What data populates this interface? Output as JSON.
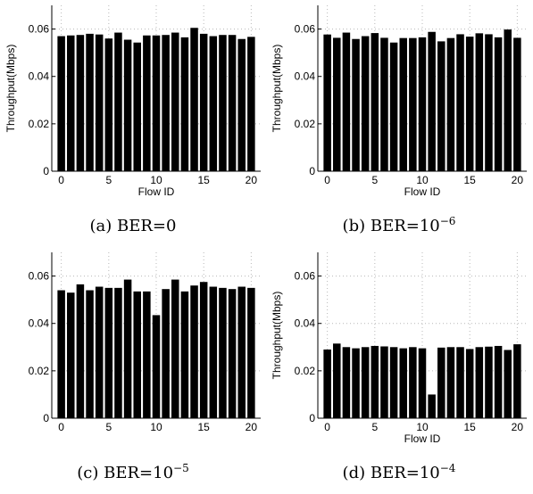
{
  "chart_data": [
    {
      "type": "bar",
      "caption": {
        "prefix": "(a) BER=0",
        "exponent": ""
      },
      "xlabel": "Flow ID",
      "ylabel": "Throughput(Mbps)",
      "xlim": [
        -1,
        21
      ],
      "ylim": [
        0,
        0.07
      ],
      "xticks": [
        0,
        5,
        10,
        15,
        20
      ],
      "yticks": [
        0,
        0.02,
        0.04,
        0.06
      ],
      "ytick_labels": [
        "0",
        "0.02",
        "0.04",
        "0.06"
      ],
      "grid": true,
      "categories": [
        0,
        1,
        2,
        3,
        4,
        5,
        6,
        7,
        8,
        9,
        10,
        11,
        12,
        13,
        14,
        15,
        16,
        17,
        18,
        19,
        20
      ],
      "values": [
        0.057,
        0.0573,
        0.0575,
        0.058,
        0.0577,
        0.056,
        0.0585,
        0.0555,
        0.0543,
        0.0573,
        0.0573,
        0.0575,
        0.0585,
        0.0565,
        0.0605,
        0.058,
        0.057,
        0.0575,
        0.0575,
        0.0558,
        0.0567
      ]
    },
    {
      "type": "bar",
      "caption": {
        "prefix": "(b) BER=10",
        "exponent": "−6"
      },
      "xlabel": "Flow ID",
      "ylabel": "Throughput(Mbps)",
      "xlim": [
        -1,
        21
      ],
      "ylim": [
        0,
        0.07
      ],
      "xticks": [
        0,
        5,
        10,
        15,
        20
      ],
      "yticks": [
        0,
        0.02,
        0.04,
        0.06
      ],
      "ytick_labels": [
        "0",
        "0.02",
        "0.04",
        "0.06"
      ],
      "grid": true,
      "categories": [
        0,
        1,
        2,
        3,
        4,
        5,
        6,
        7,
        8,
        9,
        10,
        11,
        12,
        13,
        14,
        15,
        16,
        17,
        18,
        19,
        20
      ],
      "values": [
        0.0577,
        0.0563,
        0.0585,
        0.0558,
        0.057,
        0.0583,
        0.0563,
        0.0543,
        0.0562,
        0.0562,
        0.0565,
        0.0588,
        0.0548,
        0.0562,
        0.0578,
        0.0568,
        0.0582,
        0.0578,
        0.0565,
        0.0598,
        0.0563
      ]
    },
    {
      "type": "bar",
      "caption": {
        "prefix": "(c) BER=10",
        "exponent": "−5"
      },
      "xlabel": "",
      "ylabel": "",
      "xlim": [
        -1,
        21
      ],
      "ylim": [
        0,
        0.07
      ],
      "xticks": [
        0,
        5,
        10,
        15,
        20
      ],
      "yticks": [
        0,
        0.02,
        0.04,
        0.06
      ],
      "ytick_labels": [
        "0",
        "0.02",
        "0.04",
        "0.06"
      ],
      "grid": true,
      "categories": [
        0,
        1,
        2,
        3,
        4,
        5,
        6,
        7,
        8,
        9,
        10,
        11,
        12,
        13,
        14,
        15,
        16,
        17,
        18,
        19,
        20
      ],
      "values": [
        0.054,
        0.053,
        0.0565,
        0.054,
        0.0555,
        0.055,
        0.055,
        0.0585,
        0.0535,
        0.0535,
        0.0435,
        0.0545,
        0.0585,
        0.0535,
        0.056,
        0.0575,
        0.0555,
        0.055,
        0.0545,
        0.0555,
        0.055
      ]
    },
    {
      "type": "bar",
      "caption": {
        "prefix": "(d) BER=10",
        "exponent": "−4"
      },
      "xlabel": "Flow ID",
      "ylabel": "Throughput(Mbps)",
      "xlim": [
        -1,
        21
      ],
      "ylim": [
        0,
        0.07
      ],
      "xticks": [
        0,
        5,
        10,
        15,
        20
      ],
      "yticks": [
        0,
        0.02,
        0.04,
        0.06
      ],
      "ytick_labels": [
        "0",
        "0.02",
        "0.04",
        "0.06"
      ],
      "grid": true,
      "categories": [
        0,
        1,
        2,
        3,
        4,
        5,
        6,
        7,
        8,
        9,
        10,
        11,
        12,
        13,
        14,
        15,
        16,
        17,
        18,
        19,
        20
      ],
      "values": [
        0.029,
        0.0315,
        0.03,
        0.0295,
        0.03,
        0.0305,
        0.0303,
        0.03,
        0.0295,
        0.03,
        0.0295,
        0.01,
        0.0298,
        0.03,
        0.03,
        0.0292,
        0.03,
        0.0302,
        0.0305,
        0.0288,
        0.0312
      ]
    }
  ]
}
